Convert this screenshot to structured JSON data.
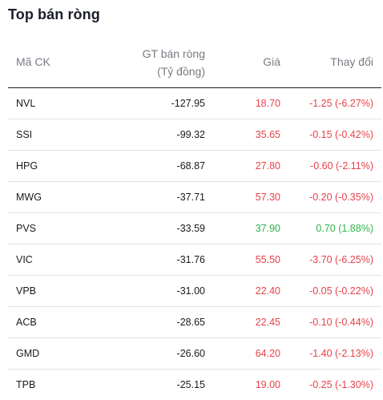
{
  "title": "Top bán ròng",
  "header": {
    "code": "Mã CK",
    "value_line1": "GT bán ròng",
    "value_line2": "(Tỷ đồng)",
    "price": "Giá",
    "change": "Thay đổi"
  },
  "colors": {
    "down": "#e8414a",
    "up": "#2eb34a"
  },
  "rows": [
    {
      "code": "NVL",
      "value": "-127.95",
      "price": "18.70",
      "change": "-1.25 (-6.27%)",
      "trend": "down"
    },
    {
      "code": "SSI",
      "value": "-99.32",
      "price": "35.65",
      "change": "-0.15 (-0.42%)",
      "trend": "down"
    },
    {
      "code": "HPG",
      "value": "-68.87",
      "price": "27.80",
      "change": "-0.60 (-2.11%)",
      "trend": "down"
    },
    {
      "code": "MWG",
      "value": "-37.71",
      "price": "57.30",
      "change": "-0.20 (-0.35%)",
      "trend": "down"
    },
    {
      "code": "PVS",
      "value": "-33.59",
      "price": "37.90",
      "change": "0.70 (1.88%)",
      "trend": "up"
    },
    {
      "code": "VIC",
      "value": "-31.76",
      "price": "55.50",
      "change": "-3.70 (-6.25%)",
      "trend": "down"
    },
    {
      "code": "VPB",
      "value": "-31.00",
      "price": "22.40",
      "change": "-0.05 (-0.22%)",
      "trend": "down"
    },
    {
      "code": "ACB",
      "value": "-28.65",
      "price": "22.45",
      "change": "-0.10 (-0.44%)",
      "trend": "down"
    },
    {
      "code": "GMD",
      "value": "-26.60",
      "price": "64.20",
      "change": "-1.40 (-2.13%)",
      "trend": "down"
    },
    {
      "code": "TPB",
      "value": "-25.15",
      "price": "19.00",
      "change": "-0.25 (-1.30%)",
      "trend": "down"
    }
  ]
}
